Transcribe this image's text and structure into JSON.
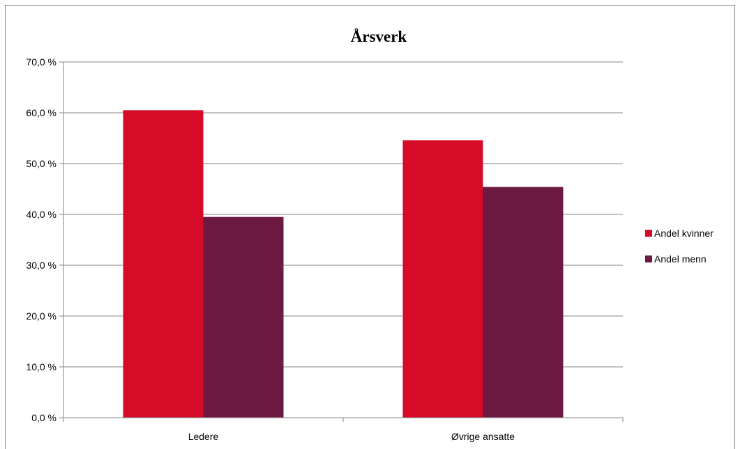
{
  "chart_data": {
    "type": "bar",
    "title": "Årsverk",
    "categories": [
      "Ledere",
      "Øvrige ansatte"
    ],
    "series": [
      {
        "name": "Andel kvinner",
        "color": "#D50B27",
        "values": [
          60.5,
          54.6
        ]
      },
      {
        "name": "Andel menn",
        "color": "#6D1A42",
        "values": [
          39.5,
          45.4
        ]
      }
    ],
    "ylim": [
      0,
      70
    ],
    "yticks": [
      0,
      10,
      20,
      30,
      40,
      50,
      60,
      70
    ],
    "ytick_labels": [
      "0,0 %",
      "10,0 %",
      "20,0 %",
      "30,0 %",
      "40,0 %",
      "50,0 %",
      "60,0 %",
      "70,0 %"
    ],
    "grid": true,
    "legend": "right"
  }
}
